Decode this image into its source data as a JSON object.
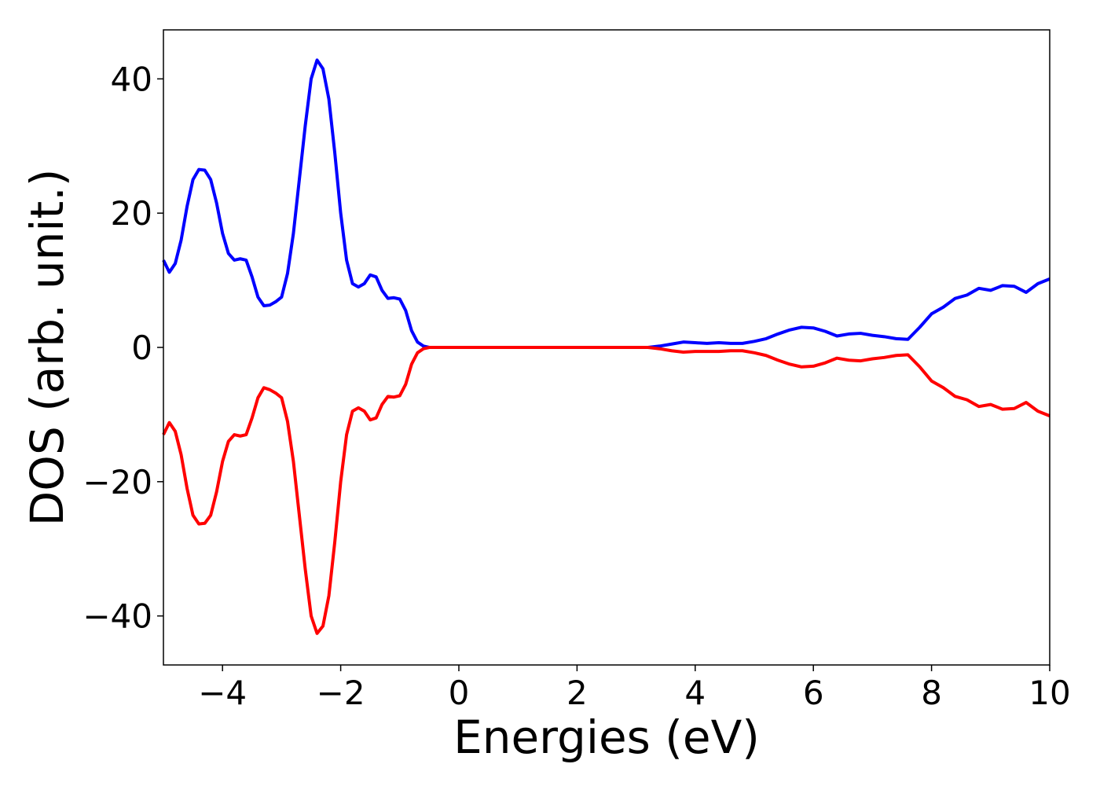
{
  "chart_data": {
    "type": "line",
    "xlabel": "Energies (eV)",
    "ylabel": "DOS (arb. unit.)",
    "x": [
      -5.0,
      -4.9,
      -4.8,
      -4.7,
      -4.6,
      -4.5,
      -4.4,
      -4.3,
      -4.2,
      -4.1,
      -4.0,
      -3.9,
      -3.8,
      -3.7,
      -3.6,
      -3.5,
      -3.4,
      -3.3,
      -3.2,
      -3.1,
      -3.0,
      -2.9,
      -2.8,
      -2.7,
      -2.6,
      -2.5,
      -2.4,
      -2.3,
      -2.2,
      -2.1,
      -2.0,
      -1.9,
      -1.8,
      -1.7,
      -1.6,
      -1.5,
      -1.4,
      -1.3,
      -1.2,
      -1.1,
      -1.0,
      -0.9,
      -0.8,
      -0.7,
      -0.6,
      -0.5,
      0,
      1,
      2,
      3,
      3.2,
      3.4,
      3.6,
      3.8,
      4.0,
      4.2,
      4.4,
      4.6,
      4.8,
      5.0,
      5.2,
      5.4,
      5.6,
      5.8,
      6.0,
      6.2,
      6.4,
      6.6,
      6.8,
      7.0,
      7.2,
      7.4,
      7.6,
      7.8,
      8.0,
      8.2,
      8.4,
      8.6,
      8.8,
      9.0,
      9.2,
      9.4,
      9.6,
      9.8,
      10.0
    ],
    "series": [
      {
        "color": "#0000ff",
        "values": [
          13,
          11.2,
          12.5,
          16,
          21,
          25,
          26.5,
          26.4,
          25,
          21.5,
          17,
          14,
          13,
          13.2,
          13,
          10.5,
          7.5,
          6.2,
          6.3,
          6.8,
          7.5,
          11,
          17,
          25,
          33,
          40,
          42.8,
          41.5,
          37,
          29,
          20,
          13,
          9.5,
          9,
          9.5,
          10.8,
          10.5,
          8.5,
          7.3,
          7.4,
          7.2,
          5.5,
          2.5,
          0.8,
          0.2,
          0,
          0,
          0,
          0,
          0,
          0,
          0.2,
          0.5,
          0.8,
          0.7,
          0.6,
          0.7,
          0.6,
          0.6,
          0.9,
          1.3,
          2,
          2.6,
          3,
          2.9,
          2.4,
          1.7,
          2,
          2.1,
          1.8,
          1.6,
          1.3,
          1.2,
          3,
          5,
          6,
          7.3,
          7.8,
          8.8,
          8.5,
          9.2,
          9.1,
          8.2,
          9.5,
          10.2
        ]
      },
      {
        "color": "#ff0000",
        "values": [
          -13,
          -11.2,
          -12.5,
          -16,
          -21,
          -25,
          -26.3,
          -26.2,
          -25,
          -21.5,
          -17,
          -14,
          -13,
          -13.2,
          -13,
          -10.5,
          -7.5,
          -6,
          -6.3,
          -6.8,
          -7.5,
          -11,
          -17,
          -25,
          -33,
          -40,
          -42.6,
          -41.5,
          -37,
          -29,
          -20,
          -13,
          -9.5,
          -9,
          -9.5,
          -10.8,
          -10.5,
          -8.5,
          -7.3,
          -7.4,
          -7.2,
          -5.5,
          -2.5,
          -0.8,
          -0.2,
          0,
          0,
          0,
          0,
          0,
          0,
          -0.2,
          -0.5,
          -0.7,
          -0.6,
          -0.6,
          -0.6,
          -0.5,
          -0.5,
          -0.8,
          -1.2,
          -1.9,
          -2.5,
          -2.9,
          -2.8,
          -2.3,
          -1.6,
          -1.9,
          -2,
          -1.7,
          -1.5,
          -1.2,
          -1.1,
          -2.9,
          -5,
          -6,
          -7.3,
          -7.8,
          -8.8,
          -8.5,
          -9.2,
          -9.1,
          -8.2,
          -9.5,
          -10.2
        ]
      }
    ],
    "xlim": [
      -5,
      10
    ],
    "xticks": [
      {
        "value": -4,
        "label": "−4"
      },
      {
        "value": -2,
        "label": "−2"
      },
      0,
      2,
      4,
      6,
      8,
      10
    ],
    "ylim": [
      -47.3,
      47.3
    ],
    "yticks": [
      {
        "value": -40,
        "label": "−40"
      },
      {
        "value": -20,
        "label": "−20"
      },
      0,
      20,
      40
    ]
  }
}
